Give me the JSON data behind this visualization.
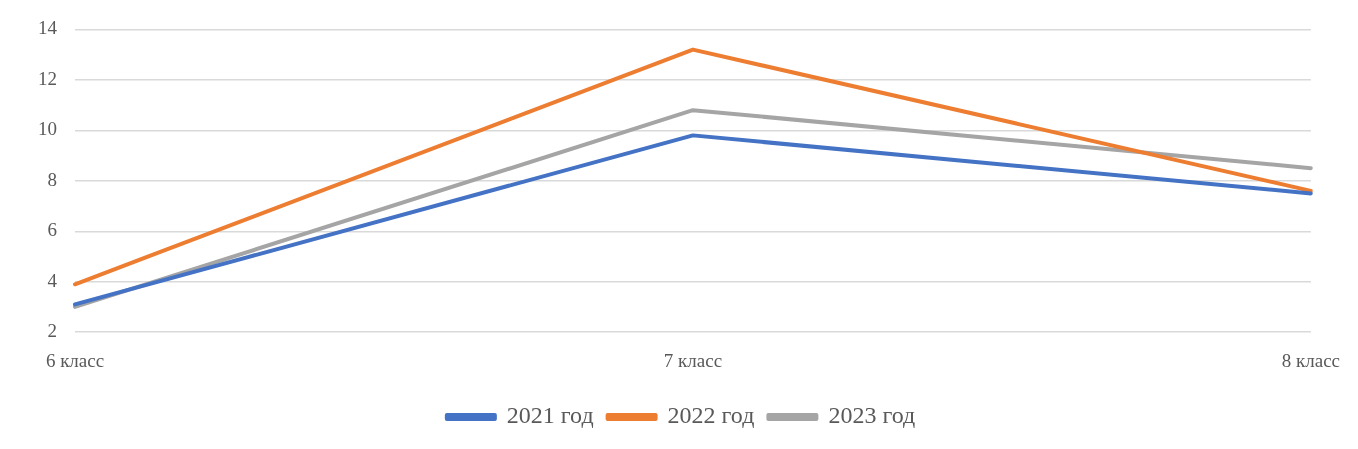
{
  "chart_data": {
    "type": "line",
    "categories": [
      "6 класс",
      "7 класс",
      "8 класс"
    ],
    "series": [
      {
        "name": "2021 год",
        "color": "#4472c4",
        "values": [
          3.1,
          9.8,
          7.5
        ]
      },
      {
        "name": "2022 год",
        "color": "#ed7d31",
        "values": [
          3.9,
          13.2,
          7.6
        ]
      },
      {
        "name": "2023 год",
        "color": "#a5a5a5",
        "values": [
          3.0,
          10.8,
          8.5
        ]
      }
    ],
    "ylim": [
      2,
      14
    ],
    "yticks": [
      2,
      4,
      6,
      8,
      10,
      12,
      14
    ],
    "grid": "y",
    "legend": "bottom",
    "marker": "none",
    "line_style": "solid"
  }
}
